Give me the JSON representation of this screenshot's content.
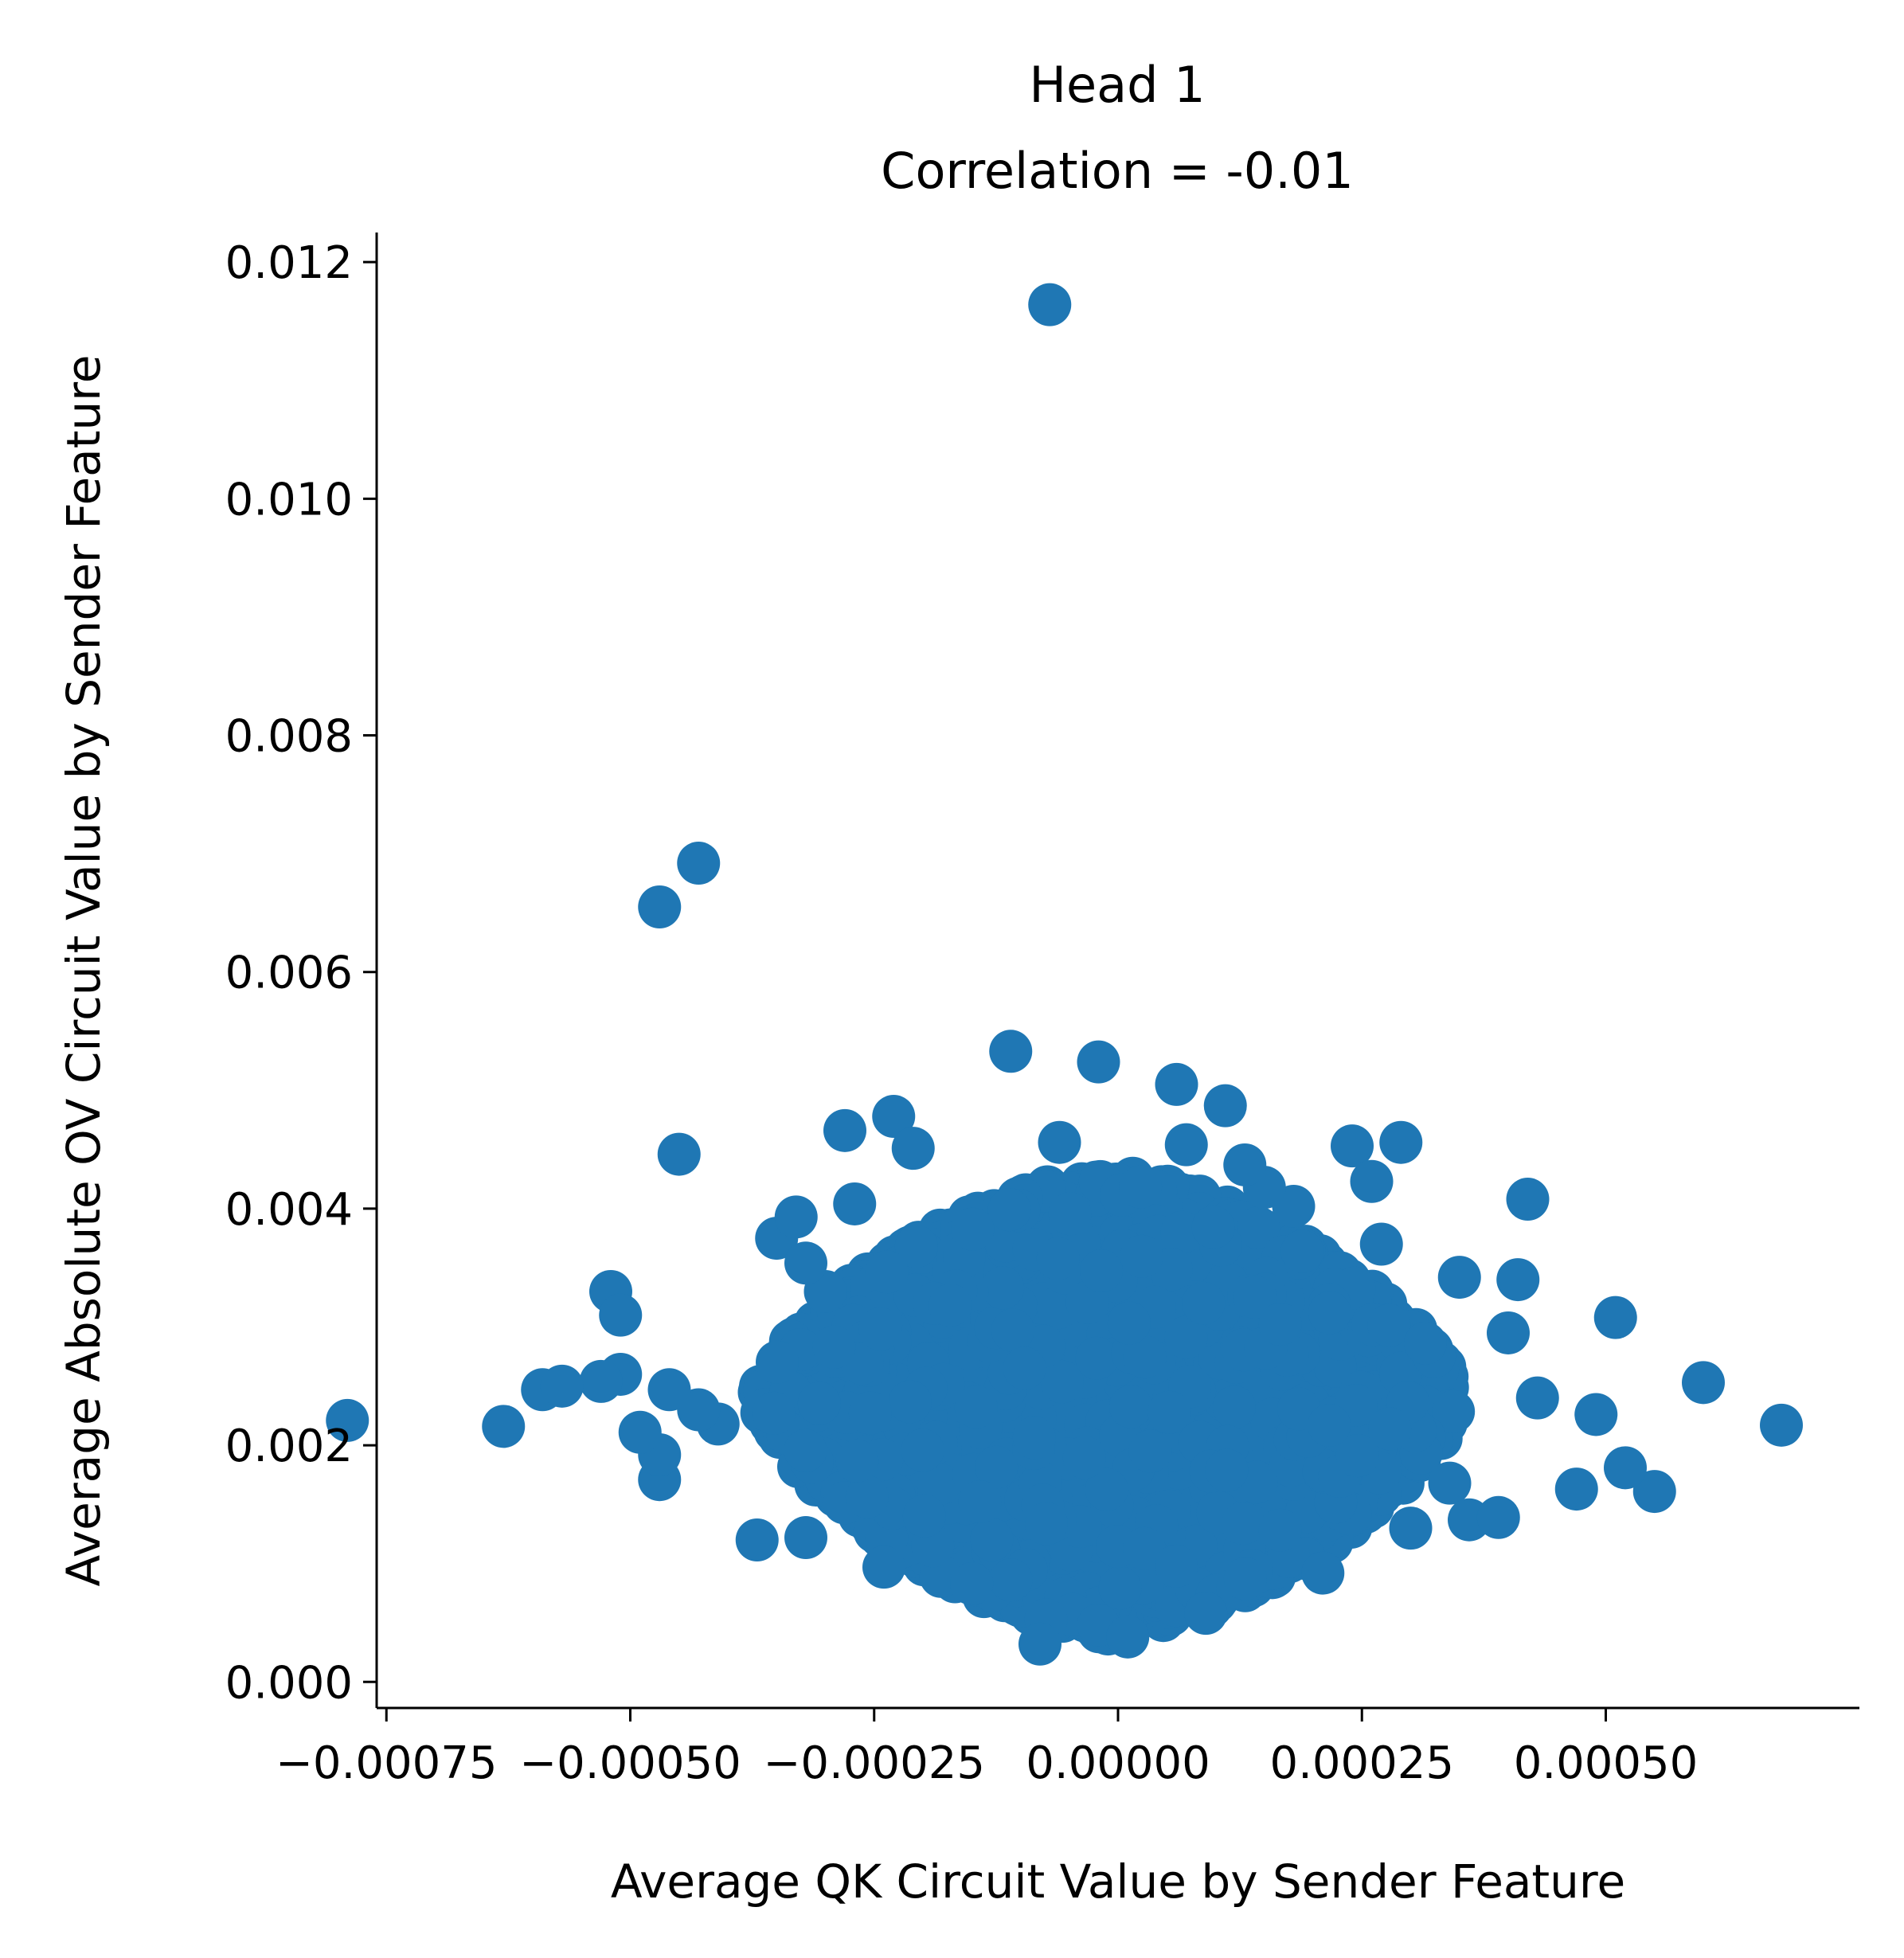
{
  "chart_data": {
    "type": "scatter",
    "title": "Head 1",
    "subtitle": "Correlation = -0.01",
    "xlabel": "Average QK Circuit Value by Sender Feature",
    "ylabel": "Average Absolute OV Circuit Value by Sender Feature",
    "xlim": [
      -0.00076,
      0.00076
    ],
    "ylim": [
      -0.00022,
      0.01225
    ],
    "xticks": [
      -0.00075,
      -0.0005,
      -0.00025,
      0.0,
      0.00025,
      0.0005
    ],
    "xtick_labels": [
      "−0.00075",
      "−0.00050",
      "−0.00025",
      "0.00000",
      "0.00025",
      "0.00050"
    ],
    "yticks": [
      0.0,
      0.002,
      0.004,
      0.006,
      0.008,
      0.01,
      0.012
    ],
    "ytick_labels": [
      "0.000",
      "0.002",
      "0.004",
      "0.006",
      "0.008",
      "0.010",
      "0.012"
    ],
    "grid": false,
    "color": "#1f77b4",
    "cluster": {
      "note": "dense central cloud of many points",
      "x_range": [
        -0.00037,
        0.00035
      ],
      "y_range": [
        0.0004,
        0.0046
      ]
    },
    "points": [
      [
        -0.00079,
        0.00221
      ],
      [
        -0.00063,
        0.00216
      ],
      [
        -0.00051,
        0.0026
      ],
      [
        -0.00052,
        0.0033
      ],
      [
        -0.00059,
        0.00247
      ],
      [
        -0.00045,
        0.00446
      ],
      [
        -0.00035,
        0.00375
      ],
      [
        -0.00037,
        0.0012
      ],
      [
        -0.00047,
        0.00171
      ],
      [
        -0.00047,
        0.00192
      ],
      [
        -0.00041,
        0.00218
      ],
      [
        -0.00043,
        0.0023
      ],
      [
        -0.00046,
        0.00247
      ],
      [
        -0.00053,
        0.00254
      ],
      [
        -0.00049,
        0.00211
      ],
      [
        -0.0003,
        0.0033
      ],
      [
        -0.00057,
        0.0025
      ],
      [
        -0.00051,
        0.0031
      ],
      [
        -0.00043,
        0.00692
      ],
      [
        -0.00047,
        0.00655
      ],
      [
        -7e-05,
        0.01164
      ],
      [
        -0.00011,
        0.00533
      ],
      [
        -2e-05,
        0.00524
      ],
      [
        6e-05,
        0.00505
      ],
      [
        0.00011,
        0.00487
      ],
      [
        -0.00023,
        0.00478
      ],
      [
        -0.00028,
        0.00466
      ],
      [
        0.00024,
        0.00453
      ],
      [
        0.00029,
        0.00456
      ],
      [
        0.00018,
        0.00402
      ],
      [
        0.00026,
        0.00423
      ],
      [
        0.00027,
        0.0037
      ],
      [
        0.00035,
        0.00342
      ],
      [
        0.00041,
        0.0034
      ],
      [
        0.00042,
        0.00408
      ],
      [
        0.00051,
        0.00308
      ],
      [
        0.0006,
        0.00253
      ],
      [
        0.00068,
        0.00217
      ],
      [
        0.00055,
        0.00161
      ],
      [
        0.00052,
        0.00181
      ],
      [
        0.00047,
        0.00163
      ],
      [
        0.00043,
        0.0024
      ],
      [
        0.00049,
        0.00226
      ],
      [
        0.0004,
        0.00295
      ],
      [
        0.00034,
        0.00168
      ],
      [
        0.00036,
        0.00137
      ],
      [
        0.00039,
        0.00139
      ],
      [
        0.0003,
        0.0013
      ],
      [
        0.00021,
        0.00092
      ],
      [
        9e-05,
        0.00058
      ],
      [
        -2e-05,
        0.00048
      ],
      [
        -8e-05,
        0.00032
      ],
      [
        1e-05,
        0.00038
      ],
      [
        -0.00015,
        0.00083
      ],
      [
        -0.00024,
        0.00097
      ],
      [
        -0.00032,
        0.00122
      ],
      [
        -0.00032,
        0.00354
      ],
      [
        -0.00033,
        0.00393
      ],
      [
        -0.00027,
        0.00404
      ],
      [
        -0.00021,
        0.00451
      ],
      [
        -6e-05,
        0.00456
      ],
      [
        7e-05,
        0.00454
      ],
      [
        0.00015,
        0.00418
      ],
      [
        0.00013,
        0.00437
      ]
    ]
  }
}
